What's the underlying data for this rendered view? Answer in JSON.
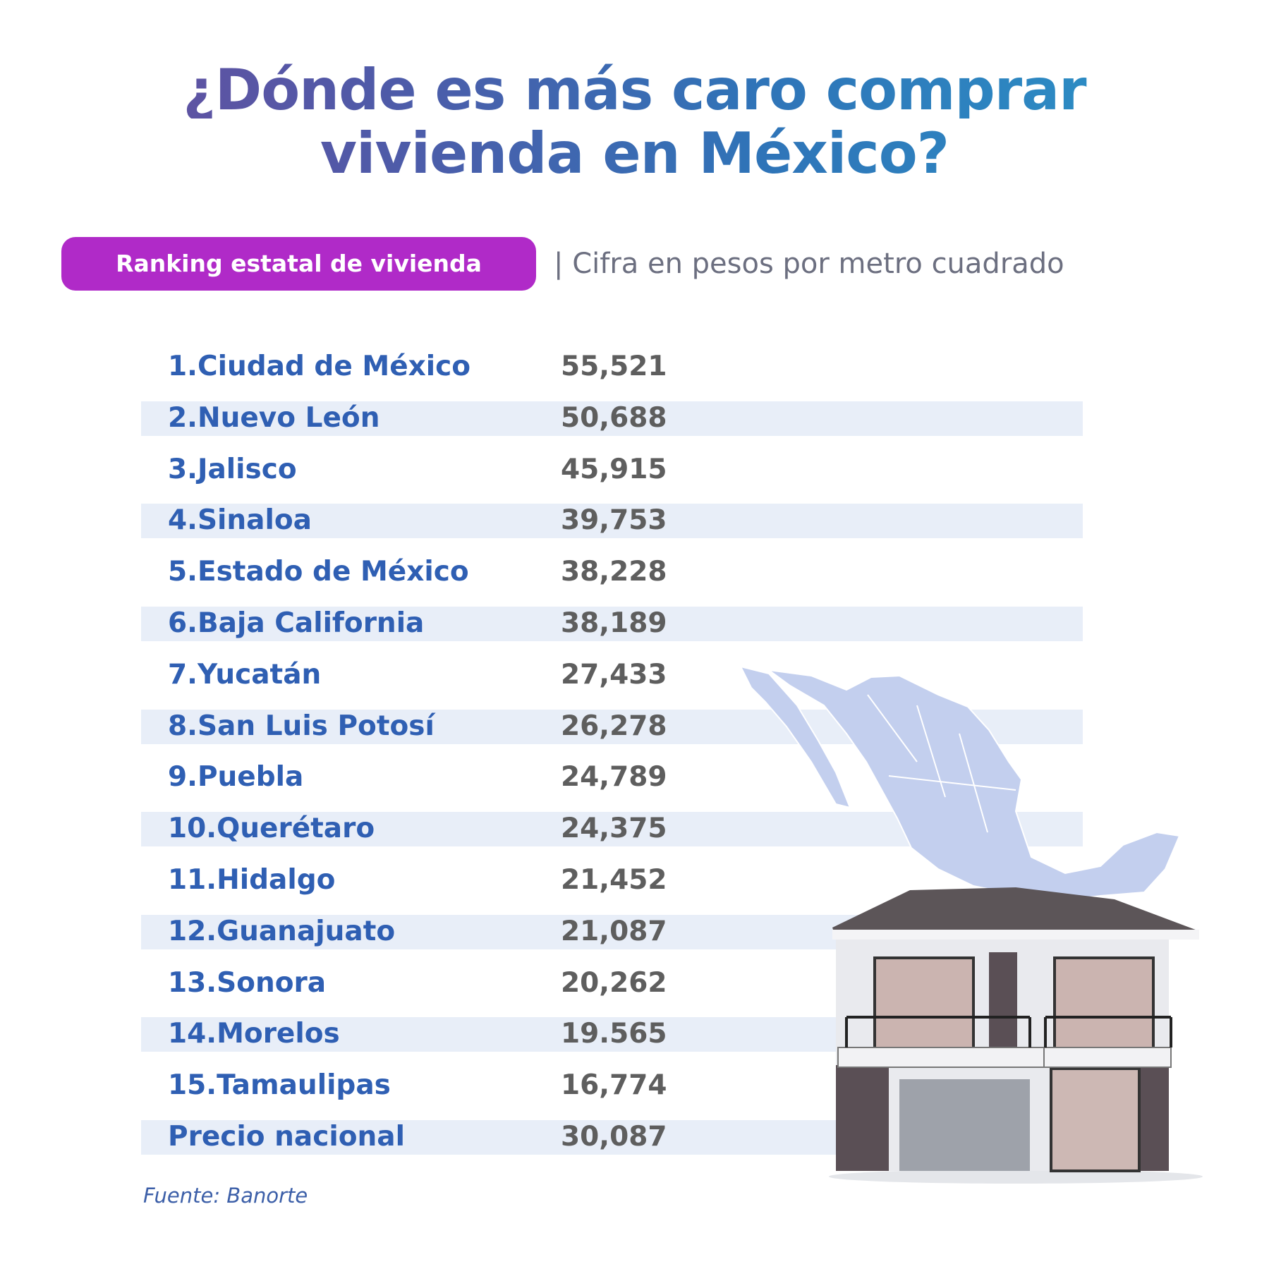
{
  "header": {
    "title_lines": [
      "¿Dónde es más caro comprar",
      "vivienda en México?"
    ],
    "badge": "Ranking estatal de vivienda",
    "subtitle": "| Cifra en pesos por metro cuadrado"
  },
  "table": {
    "rows": [
      [
        "1.Ciudad de México",
        "55,521"
      ],
      [
        "2.Nuevo León",
        "50,688"
      ],
      [
        "3.Jalisco",
        "45,915"
      ],
      [
        "4.Sinaloa",
        "39,753"
      ],
      [
        "5.Estado de México",
        "38,228"
      ],
      [
        "6.Baja California",
        "38,189"
      ],
      [
        "7.Yucatán",
        "27,433"
      ],
      [
        "8.San Luis Potosí",
        "26,278"
      ],
      [
        "9.Puebla",
        "24,789"
      ],
      [
        "10.Querétaro",
        "24,375"
      ],
      [
        "11.Hidalgo",
        "21,452"
      ],
      [
        "12.Guanajuato",
        "21,087"
      ],
      [
        "13.Sonora",
        "20,262"
      ],
      [
        "14.Morelos",
        "19.565"
      ],
      [
        "15.Tamaulipas",
        "16,774"
      ],
      [
        "Precio nacional",
        "30,087"
      ]
    ]
  },
  "footer": {
    "source": "Fuente: Banorte"
  }
}
